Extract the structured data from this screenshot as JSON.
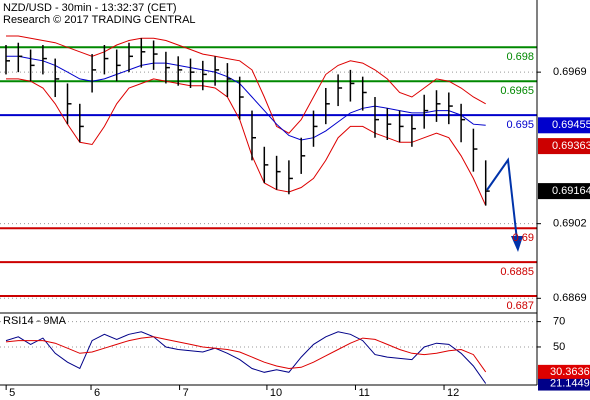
{
  "chart_data": [
    {
      "type": "ohlc",
      "title": "NZD/USD - 30min - 13:32:37 (CET)",
      "subtitle": "Research © 2017 TRADING CENTRAL",
      "ylim": [
        0.68625,
        0.70009
      ],
      "yticks": [
        0.6969,
        0.6902,
        0.6869
      ],
      "grid": true,
      "x_day_labels": [
        "5",
        "6",
        "7",
        "10",
        "11",
        "12"
      ],
      "x_day_index": [
        0.5,
        7.4,
        14.6,
        21.7,
        28.9,
        36.1
      ],
      "bar_color": "#000000",
      "high": [
        0.6981,
        0.6982,
        0.6979,
        0.6981,
        0.6975,
        0.6964,
        0.6955,
        0.6977,
        0.6981,
        0.6979,
        0.6982,
        0.6984,
        0.6983,
        0.6978,
        0.6976,
        0.6975,
        0.6974,
        0.6976,
        0.6973,
        0.6967,
        0.6952,
        0.6936,
        0.6932,
        0.693,
        0.694,
        0.6952,
        0.6962,
        0.6968,
        0.697,
        0.6967,
        0.6958,
        0.6953,
        0.6952,
        0.695,
        0.6959,
        0.6961,
        0.696,
        0.6955,
        0.6944,
        0.693
      ],
      "low": [
        0.6968,
        0.6969,
        0.6965,
        0.6968,
        0.6958,
        0.6946,
        0.6938,
        0.696,
        0.6968,
        0.6965,
        0.6969,
        0.6971,
        0.697,
        0.6964,
        0.6963,
        0.6962,
        0.6961,
        0.6963,
        0.6958,
        0.6948,
        0.693,
        0.692,
        0.6917,
        0.6915,
        0.6924,
        0.6936,
        0.6946,
        0.6954,
        0.6956,
        0.6952,
        0.694,
        0.6939,
        0.6938,
        0.6936,
        0.6944,
        0.6947,
        0.6946,
        0.6938,
        0.6925,
        0.691
      ],
      "close": [
        0.6974,
        0.6976,
        0.6972,
        0.6975,
        0.6966,
        0.6955,
        0.6945,
        0.697,
        0.6975,
        0.6972,
        0.6976,
        0.6978,
        0.6977,
        0.6971,
        0.697,
        0.6969,
        0.6968,
        0.697,
        0.6966,
        0.6958,
        0.694,
        0.6928,
        0.6925,
        0.6922,
        0.6932,
        0.6945,
        0.6955,
        0.6962,
        0.6964,
        0.696,
        0.6948,
        0.6946,
        0.6945,
        0.6944,
        0.6952,
        0.6955,
        0.6954,
        0.6948,
        0.6935,
        0.69164
      ],
      "series": [
        {
          "color": "#dd0000",
          "values": [
            0.6985,
            0.6985,
            0.6984,
            0.6983,
            0.6982,
            0.698,
            0.6978,
            0.6976,
            0.6978,
            0.6981,
            0.6983,
            0.6984,
            0.6984,
            0.6983,
            0.6981,
            0.6979,
            0.6977,
            0.6976,
            0.6975,
            0.6974,
            0.697,
            0.6958,
            0.6945,
            0.6942,
            0.6948,
            0.6958,
            0.6968,
            0.6972,
            0.6974,
            0.6973,
            0.697,
            0.6966,
            0.696,
            0.6958,
            0.6962,
            0.6966,
            0.6965,
            0.6962,
            0.6958,
            0.6955
          ]
        },
        {
          "color": "#dd0000",
          "values": [
            0.6966,
            0.6966,
            0.6965,
            0.6962,
            0.6955,
            0.6946,
            0.6938,
            0.6937,
            0.6945,
            0.6955,
            0.6962,
            0.6964,
            0.6966,
            0.6965,
            0.6964,
            0.6963,
            0.6963,
            0.6962,
            0.6958,
            0.6948,
            0.6932,
            0.692,
            0.6917,
            0.6916,
            0.6918,
            0.6922,
            0.693,
            0.694,
            0.6945,
            0.6945,
            0.6942,
            0.694,
            0.6938,
            0.6938,
            0.694,
            0.6942,
            0.694,
            0.6932,
            0.6922,
            0.691
          ]
        },
        {
          "color": "#0000cc",
          "values": [
            0.6976,
            0.6976,
            0.6975,
            0.6974,
            0.6972,
            0.6969,
            0.6966,
            0.6965,
            0.6966,
            0.6968,
            0.697,
            0.6972,
            0.6973,
            0.6973,
            0.6972,
            0.6971,
            0.697,
            0.6969,
            0.6967,
            0.6964,
            0.6958,
            0.6952,
            0.6946,
            0.6941,
            0.6939,
            0.694,
            0.6943,
            0.6947,
            0.6951,
            0.6953,
            0.6954,
            0.6953,
            0.6952,
            0.6951,
            0.6951,
            0.6952,
            0.6952,
            0.695,
            0.6946,
            0.69455
          ]
        }
      ],
      "levels": [
        {
          "value": 0.698,
          "color": "#008800"
        },
        {
          "value": 0.6965,
          "color": "#008800"
        },
        {
          "value": 0.695,
          "color": "#0000cc"
        },
        {
          "value": 0.69,
          "color": "#cc0000"
        },
        {
          "value": 0.6885,
          "color": "#cc0000"
        },
        {
          "value": 0.687,
          "color": "#cc0000"
        }
      ],
      "price_markers": [
        {
          "value": 0.69455,
          "color": "#0000cc"
        },
        {
          "value": 0.69363,
          "color": "#cc0000"
        },
        {
          "value": 0.69164,
          "color": "#000000"
        }
      ]
    },
    {
      "type": "line",
      "title": "RSI14 - 9MA",
      "ylim": [
        20,
        76
      ],
      "yticks": [
        70,
        50
      ],
      "grid": true,
      "series": [
        {
          "color": "#000088",
          "values": [
            55,
            58,
            52,
            57,
            45,
            38,
            33,
            55,
            60,
            56,
            60,
            62,
            58,
            50,
            48,
            47,
            46,
            49,
            45,
            40,
            33,
            30,
            32,
            30,
            42,
            52,
            58,
            62,
            60,
            55,
            44,
            42,
            41,
            40,
            50,
            53,
            52,
            45,
            35,
            21.1449
          ]
        },
        {
          "color": "#dd0000",
          "values": [
            54,
            55,
            55,
            55,
            53,
            49,
            45,
            46,
            49,
            52,
            55,
            57,
            58,
            56,
            54,
            52,
            50,
            49,
            48,
            46,
            42,
            38,
            35,
            33,
            34,
            38,
            43,
            48,
            53,
            57,
            56,
            52,
            48,
            45,
            44,
            45,
            47,
            48,
            44,
            30.3636
          ]
        }
      ]
    }
  ]
}
